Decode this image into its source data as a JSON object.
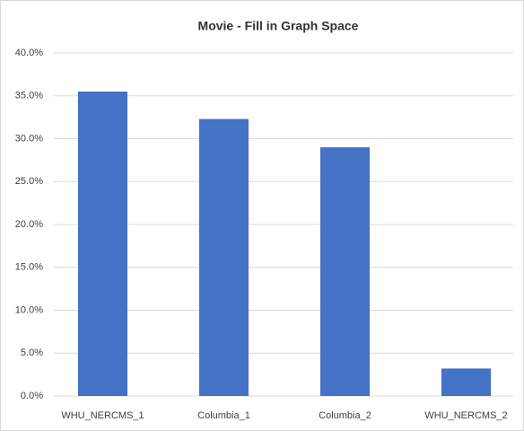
{
  "chart_data": {
    "type": "bar",
    "title": "Movie - Fill in Graph Space",
    "categories": [
      "WHU_NERCMS_1",
      "Columbia_1",
      "Columbia_2",
      "WHU_NERCMS_2"
    ],
    "values": [
      35.5,
      32.3,
      29.0,
      3.2
    ],
    "color": "#4472c4",
    "ylim": [
      0,
      40
    ],
    "yticks": [
      {
        "value": 0,
        "label": "0.0%"
      },
      {
        "value": 5,
        "label": "5.0%"
      },
      {
        "value": 10,
        "label": "10.0%"
      },
      {
        "value": 15,
        "label": "15.0%"
      },
      {
        "value": 20,
        "label": "20.0%"
      },
      {
        "value": 25,
        "label": "25.0%"
      },
      {
        "value": 30,
        "label": "30.0%"
      },
      {
        "value": 35,
        "label": "35.0%"
      },
      {
        "value": 40,
        "label": "40.0%"
      }
    ],
    "grid": true
  }
}
